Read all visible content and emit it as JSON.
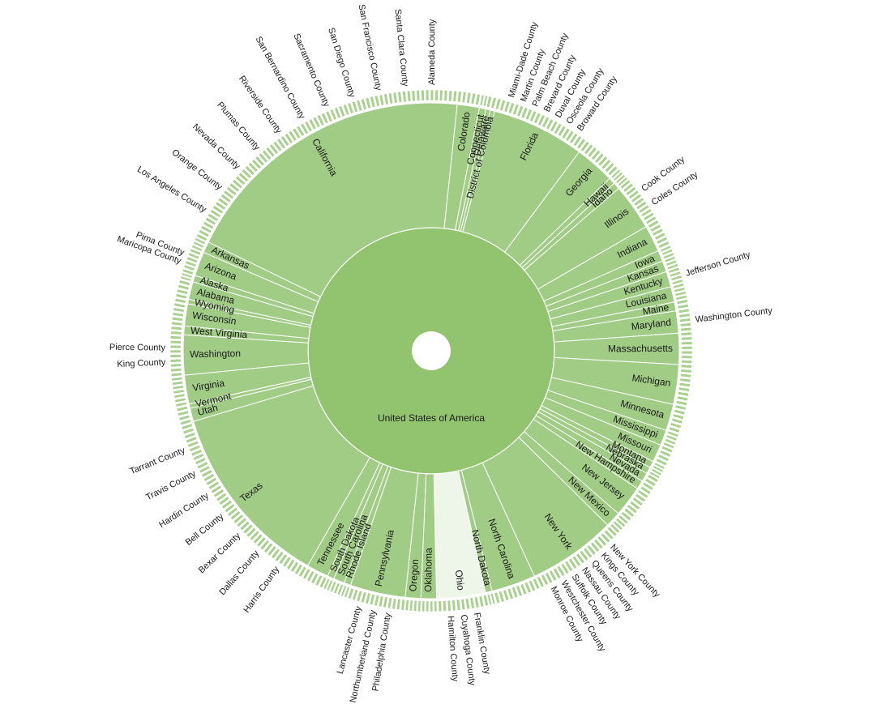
{
  "colors": {
    "root": "#92c46f",
    "state": "#a1cc86",
    "state_highlight": "#eef5e9",
    "county": "#a8d18d",
    "stroke": "#ffffff"
  },
  "chart_data": {
    "type": "sunburst",
    "title": "",
    "root": "United States of America",
    "states": [
      {
        "name": "California",
        "value": 135
      },
      {
        "name": "Colorado",
        "value": 10
      },
      {
        "name": "Connecticut",
        "value": 3
      },
      {
        "name": "Delaware",
        "value": 2
      },
      {
        "name": "District of Columbia",
        "value": 2
      },
      {
        "name": "Florida",
        "value": 42
      },
      {
        "name": "Georgia",
        "value": 18
      },
      {
        "name": "Hawaii",
        "value": 3
      },
      {
        "name": "Idaho",
        "value": 3
      },
      {
        "name": "Illinois",
        "value": 21
      },
      {
        "name": "Indiana",
        "value": 12
      },
      {
        "name": "Iowa",
        "value": 5
      },
      {
        "name": "Kansas",
        "value": 5
      },
      {
        "name": "Kentucky",
        "value": 7
      },
      {
        "name": "Louisiana",
        "value": 7
      },
      {
        "name": "Maine",
        "value": 4
      },
      {
        "name": "Maryland",
        "value": 10
      },
      {
        "name": "Massachusetts",
        "value": 14
      },
      {
        "name": "Michigan",
        "value": 18
      },
      {
        "name": "Minnesota",
        "value": 12
      },
      {
        "name": "Mississippi",
        "value": 7
      },
      {
        "name": "Missouri",
        "value": 8
      },
      {
        "name": "Montana",
        "value": 3
      },
      {
        "name": "Nebraska",
        "value": 3
      },
      {
        "name": "Nevada",
        "value": 4
      },
      {
        "name": "New Hampshire",
        "value": 4
      },
      {
        "name": "New Jersey",
        "value": 14
      },
      {
        "name": "New Mexico",
        "value": 7
      },
      {
        "name": "New York",
        "value": 40
      },
      {
        "name": "North Carolina",
        "value": 20
      },
      {
        "name": "North Dakota",
        "value": 3
      },
      {
        "name": "Ohio",
        "value": 22
      },
      {
        "name": "Oklahoma",
        "value": 7
      },
      {
        "name": "Oregon",
        "value": 7
      },
      {
        "name": "Pennsylvania",
        "value": 25
      },
      {
        "name": "Rhode Island",
        "value": 3
      },
      {
        "name": "South Carolina",
        "value": 5
      },
      {
        "name": "South Dakota",
        "value": 3
      },
      {
        "name": "Tennessee",
        "value": 10
      },
      {
        "name": "Texas",
        "value": 84
      },
      {
        "name": "Utah",
        "value": 6
      },
      {
        "name": "Vermont",
        "value": 2
      },
      {
        "name": "Virginia",
        "value": 13
      },
      {
        "name": "Washington",
        "value": 18
      },
      {
        "name": "West Virginia",
        "value": 4
      },
      {
        "name": "Wisconsin",
        "value": 10
      },
      {
        "name": "Wyoming",
        "value": 2
      },
      {
        "name": "Alabama",
        "value": 8
      },
      {
        "name": "Alaska",
        "value": 3
      },
      {
        "name": "Arizona",
        "value": 11
      },
      {
        "name": "Arkansas",
        "value": 5
      }
    ],
    "highlighted_state": "Ohio",
    "counties": [
      {
        "name": "Los Angeles County",
        "state": "California"
      },
      {
        "name": "Orange County",
        "state": "California"
      },
      {
        "name": "Nevada County",
        "state": "California"
      },
      {
        "name": "Plumas County",
        "state": "California"
      },
      {
        "name": "Riverside County",
        "state": "California"
      },
      {
        "name": "San Bernardino County",
        "state": "California"
      },
      {
        "name": "Sacramento County",
        "state": "California"
      },
      {
        "name": "San Diego County",
        "state": "California"
      },
      {
        "name": "San Francisco County",
        "state": "California"
      },
      {
        "name": "Santa Clara County",
        "state": "California"
      },
      {
        "name": "Alameda County",
        "state": "California"
      },
      {
        "name": "Cook County",
        "state": "Illinois"
      },
      {
        "name": "Coles County",
        "state": "Illinois"
      },
      {
        "name": "Miami-Dade County",
        "state": "Florida"
      },
      {
        "name": "Martin County",
        "state": "Florida"
      },
      {
        "name": "Palm Beach County",
        "state": "Florida"
      },
      {
        "name": "Brevard County",
        "state": "Florida"
      },
      {
        "name": "Duval County",
        "state": "Florida"
      },
      {
        "name": "Osceola County",
        "state": "Florida"
      },
      {
        "name": "Broward County",
        "state": "Florida"
      },
      {
        "name": "Maricopa County",
        "state": "Arizona"
      },
      {
        "name": "Pima County",
        "state": "Arizona"
      },
      {
        "name": "Harris County",
        "state": "Texas"
      },
      {
        "name": "Dallas County",
        "state": "Texas"
      },
      {
        "name": "Bexar County",
        "state": "Texas"
      },
      {
        "name": "Bell County",
        "state": "Texas"
      },
      {
        "name": "Hardin County",
        "state": "Texas"
      },
      {
        "name": "Travis County",
        "state": "Texas"
      },
      {
        "name": "Tarrant County",
        "state": "Texas"
      },
      {
        "name": "King County",
        "state": "Washington"
      },
      {
        "name": "Pierce County",
        "state": "Washington"
      },
      {
        "name": "Philadelphia County",
        "state": "Pennsylvania"
      },
      {
        "name": "Northumberland County",
        "state": "Pennsylvania"
      },
      {
        "name": "Lancaster County",
        "state": "Pennsylvania"
      },
      {
        "name": "Franklin County",
        "state": "Ohio"
      },
      {
        "name": "Cuyahoga County",
        "state": "Ohio"
      },
      {
        "name": "Hamilton County",
        "state": "Ohio"
      },
      {
        "name": "New York County",
        "state": "New York"
      },
      {
        "name": "Kings County",
        "state": "New York"
      },
      {
        "name": "Queens County",
        "state": "New York"
      },
      {
        "name": "Nassau County",
        "state": "New York"
      },
      {
        "name": "Suffolk County",
        "state": "New York"
      },
      {
        "name": "Westchester County",
        "state": "New York"
      },
      {
        "name": "Monroe County",
        "state": "New York"
      },
      {
        "name": "Jefferson County",
        "state": "Kentucky"
      },
      {
        "name": "Washington County",
        "state": "Maryland"
      }
    ]
  }
}
